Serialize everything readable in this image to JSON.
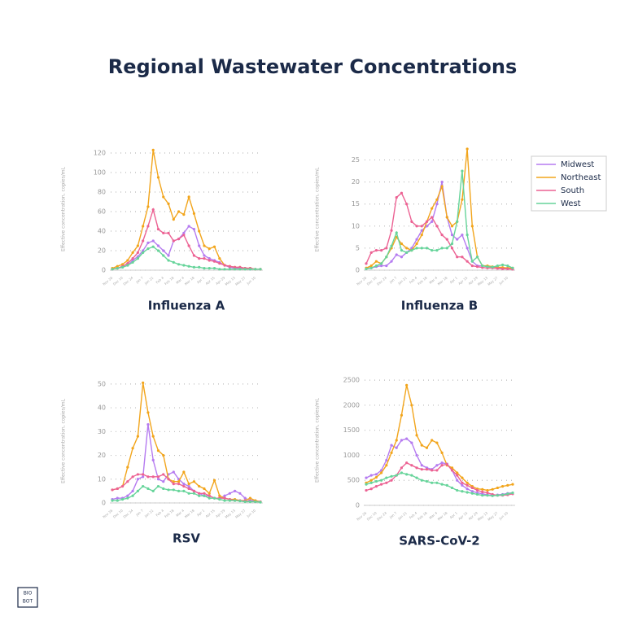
{
  "title": "Regional  Wastewater Concentrations",
  "logo": [
    "BIO",
    "BOT"
  ],
  "chart_data": [
    {
      "type": "line",
      "title": "Influenza A",
      "y_label": "Effective concentration, copies/mL",
      "categories": [
        "Nov 26",
        null,
        "Dec 10",
        null,
        "Dec 24",
        null,
        "Jan 7",
        null,
        "Jan 21",
        null,
        "Feb 4",
        null,
        "Feb 18",
        null,
        "Mar 4",
        null,
        "Mar 18",
        null,
        "Apr 1",
        null,
        "Apr 15",
        null,
        "Apr 29",
        null,
        "May 13",
        null,
        "May 27",
        null,
        "Jun 10",
        null
      ],
      "ylim": [
        0,
        125
      ],
      "yticks": [
        0,
        20,
        40,
        60,
        80,
        100,
        120
      ],
      "grid": true,
      "series": [
        {
          "name": "Midwest",
          "color": "#b57bf0",
          "values": [
            1,
            2,
            3,
            5,
            10,
            14,
            20,
            28,
            30,
            25,
            20,
            15,
            30,
            32,
            38,
            45,
            42,
            25,
            15,
            12,
            10,
            8,
            5,
            3,
            2,
            2,
            2,
            1,
            1,
            1
          ]
        },
        {
          "name": "Northeast",
          "color": "#f2a51c",
          "values": [
            2,
            4,
            6,
            10,
            18,
            25,
            45,
            65,
            123,
            95,
            75,
            68,
            52,
            60,
            57,
            75,
            58,
            40,
            25,
            22,
            24,
            12,
            5,
            4,
            3,
            3,
            2,
            2,
            1,
            1
          ]
        },
        {
          "name": "South",
          "color": "#ec6293",
          "values": [
            1,
            2,
            4,
            7,
            12,
            18,
            30,
            45,
            62,
            42,
            38,
            38,
            30,
            32,
            36,
            25,
            15,
            12,
            12,
            10,
            9,
            7,
            5,
            4,
            3,
            3,
            2,
            2,
            1,
            1
          ]
        },
        {
          "name": "West",
          "color": "#66d49a",
          "values": [
            1,
            2,
            3,
            5,
            8,
            12,
            18,
            22,
            24,
            20,
            15,
            10,
            8,
            6,
            5,
            4,
            3,
            3,
            2,
            2,
            2,
            1,
            1,
            1,
            1,
            1,
            1,
            1,
            1,
            1
          ]
        }
      ]
    },
    {
      "type": "line",
      "title": "Influenza B",
      "y_label": "Effective concentration, copies/mL",
      "categories": [
        "Nov 26",
        null,
        "Dec 10",
        null,
        "Dec 24",
        null,
        "Jan 7",
        null,
        "Jan 21",
        null,
        "Feb 4",
        null,
        "Feb 18",
        null,
        "Mar 4",
        null,
        "Mar 18",
        null,
        "Apr 1",
        null,
        "Apr 15",
        null,
        "Apr 29",
        null,
        "May 13",
        null,
        "May 27",
        null,
        "Jun 10",
        null
      ],
      "ylim": [
        0,
        27.5
      ],
      "yticks": [
        0,
        5,
        10,
        15,
        20,
        25
      ],
      "grid": true,
      "legend": "right",
      "series": [
        {
          "name": "Midwest",
          "color": "#b57bf0",
          "values": [
            0.5,
            0.5,
            0.8,
            1,
            1,
            2,
            3.5,
            3,
            4,
            5,
            7,
            9,
            10,
            11,
            15,
            20,
            12,
            8,
            7,
            8,
            5,
            2,
            1,
            1,
            0.8,
            0.7,
            0.6,
            0.5,
            0.4,
            0.3
          ]
        },
        {
          "name": "Northeast",
          "color": "#f2a51c",
          "values": [
            0.5,
            1,
            2,
            1.5,
            3,
            5,
            7.5,
            6,
            5,
            4.5,
            6,
            8,
            11,
            14,
            16,
            19,
            12,
            10,
            11,
            16,
            27.5,
            10,
            3,
            1,
            1,
            0.8,
            0.7,
            0.6,
            0.5,
            0.5
          ]
        },
        {
          "name": "South",
          "color": "#ec6293",
          "values": [
            1.5,
            4,
            4.5,
            4.5,
            5,
            9,
            16.5,
            17.5,
            15,
            11,
            10,
            10,
            11,
            12,
            10,
            8,
            7,
            5,
            3,
            3,
            2,
            1,
            0.8,
            0.6,
            0.5,
            0.5,
            0.4,
            0.3,
            0.3,
            0.2
          ]
        },
        {
          "name": "West",
          "color": "#66d49a",
          "values": [
            0.3,
            0.5,
            1,
            1.5,
            3,
            5.5,
            8.5,
            4.5,
            4,
            4.5,
            5,
            5,
            5,
            4.5,
            4.5,
            5,
            5,
            6,
            11,
            22.5,
            8,
            2,
            3,
            1,
            0.8,
            0.7,
            1,
            1.2,
            1,
            0.5
          ]
        }
      ]
    },
    {
      "type": "line",
      "title": "RSV",
      "y_label": "Effective concentration, copies/mL",
      "categories": [
        "Nov 26",
        null,
        "Dec 10",
        null,
        "Dec 24",
        null,
        "Jan 7",
        null,
        "Jan 21",
        null,
        "Feb 4",
        null,
        "Feb 18",
        null,
        "Mar 4",
        null,
        "Mar 18",
        null,
        "Apr 1",
        null,
        "Apr 15",
        null,
        "Apr 29",
        null,
        "May 13",
        null,
        "May 27",
        null,
        "Jun 10",
        null
      ],
      "ylim": [
        0,
        52
      ],
      "yticks": [
        0,
        10,
        20,
        30,
        40,
        50
      ],
      "grid": true,
      "series": [
        {
          "name": "Midwest",
          "color": "#b57bf0",
          "values": [
            1.5,
            2,
            2,
            3,
            5,
            10,
            11,
            33,
            18,
            10,
            9,
            12,
            13,
            10,
            8,
            7,
            5,
            4,
            3,
            3,
            2,
            2,
            3,
            4,
            5,
            4,
            2,
            1,
            1,
            0.5
          ]
        },
        {
          "name": "Northeast",
          "color": "#f2a51c",
          "values": [
            5.5,
            6,
            7,
            15,
            23,
            28,
            50.5,
            38,
            28,
            22,
            20,
            10,
            9,
            9,
            13,
            8,
            9,
            7,
            6,
            4,
            9.5,
            3,
            2,
            1.5,
            1.5,
            1,
            1,
            2,
            1,
            0.5
          ]
        },
        {
          "name": "South",
          "color": "#ec6293",
          "values": [
            5.5,
            6,
            7,
            9,
            11,
            12,
            12,
            11,
            11,
            11,
            12,
            10,
            8,
            8,
            7,
            6,
            5,
            4,
            4,
            3,
            2,
            2,
            2,
            1.5,
            1,
            1,
            0.8,
            0.7,
            0.5,
            0.5
          ]
        },
        {
          "name": "West",
          "color": "#66d49a",
          "values": [
            1,
            1,
            1.5,
            2,
            3,
            5,
            7,
            6,
            5,
            7,
            6,
            5.5,
            5.5,
            5,
            5,
            4,
            4,
            3,
            3,
            2,
            2,
            1.5,
            1,
            1,
            1,
            0.8,
            0.5,
            0.5,
            0.5,
            0.3
          ]
        }
      ]
    },
    {
      "type": "line",
      "title": "SARS-CoV-2",
      "y_label": "Effective concentration, copies/mL",
      "categories": [
        "Nov 26",
        null,
        "Dec 10",
        null,
        "Dec 24",
        null,
        "Jan 7",
        null,
        "Jan 21",
        null,
        "Feb 4",
        null,
        "Feb 18",
        null,
        "Mar 4",
        null,
        "Mar 18",
        null,
        "Apr 1",
        null,
        "Apr 15",
        null,
        "Apr 29",
        null,
        "May 13",
        null,
        "May 27",
        null,
        "Jun 10",
        null
      ],
      "ylim": [
        0,
        2600
      ],
      "yticks": [
        0,
        500,
        1000,
        1500,
        2000,
        2500
      ],
      "grid": true,
      "series": [
        {
          "name": "Midwest",
          "color": "#b57bf0",
          "values": [
            550,
            600,
            620,
            700,
            900,
            1200,
            1150,
            1300,
            1330,
            1250,
            1000,
            800,
            750,
            720,
            800,
            850,
            830,
            700,
            500,
            400,
            330,
            280,
            250,
            230,
            210,
            200,
            210,
            220,
            240,
            250
          ]
        },
        {
          "name": "Northeast",
          "color": "#f2a51c",
          "values": [
            450,
            500,
            560,
            650,
            800,
            1050,
            1300,
            1800,
            2400,
            2000,
            1400,
            1200,
            1150,
            1300,
            1250,
            1050,
            800,
            750,
            650,
            550,
            450,
            380,
            330,
            320,
            300,
            320,
            350,
            380,
            400,
            420
          ]
        },
        {
          "name": "South",
          "color": "#ec6293",
          "values": [
            300,
            330,
            380,
            420,
            450,
            500,
            600,
            750,
            850,
            800,
            750,
            720,
            720,
            700,
            700,
            800,
            820,
            700,
            600,
            450,
            400,
            350,
            300,
            270,
            250,
            220,
            200,
            200,
            210,
            230
          ]
        },
        {
          "name": "West",
          "color": "#66d49a",
          "values": [
            420,
            450,
            480,
            500,
            550,
            580,
            600,
            650,
            620,
            600,
            550,
            500,
            480,
            450,
            450,
            420,
            400,
            350,
            300,
            280,
            260,
            240,
            220,
            200,
            200,
            190,
            200,
            210,
            230,
            250
          ]
        }
      ]
    }
  ]
}
